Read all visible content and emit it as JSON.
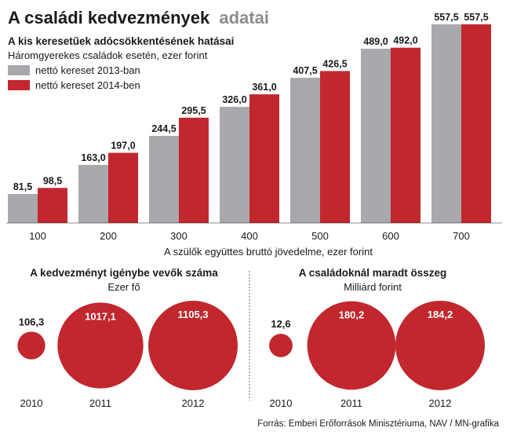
{
  "title_part1": "A családi kedvezmények",
  "title_part2": "adatai",
  "colors": {
    "gray_2013": "#a7a9ac",
    "red_2014": "#c1272d",
    "bubble_red": "#c1272d",
    "title_gray": "#8c8c8c",
    "text": "#1a1a1a"
  },
  "chart_data": [
    {
      "type": "bar",
      "title": "A kis keresetűek adócsökkentésének hatásai",
      "subtitle": "Háromgyerekes családok esetén, ezer forint",
      "categories": [
        "100",
        "200",
        "300",
        "400",
        "500",
        "600",
        "700"
      ],
      "xlabel": "A szülők együttes bruttó jövedelme, ezer forint",
      "ylabel": "",
      "ylim": [
        0,
        557.5
      ],
      "legend_position": "top-left",
      "grid": false,
      "series": [
        {
          "name": "nettó kereset 2013-ban",
          "color": "#a7a9ac",
          "values": [
            81.5,
            163.0,
            244.5,
            326.0,
            407.5,
            489.0,
            557.5
          ],
          "labels": [
            "81,5",
            "163,0",
            "244,5",
            "326,0",
            "407,5",
            "489,0",
            "557,5"
          ]
        },
        {
          "name": "nettó kereset 2014-ben",
          "color": "#c1272d",
          "values": [
            98.5,
            197.0,
            295.5,
            361.0,
            426.5,
            492.0,
            557.5
          ],
          "labels": [
            "98,5",
            "197,0",
            "295,5",
            "361,0",
            "426,5",
            "492,0",
            "557,5"
          ]
        }
      ]
    },
    {
      "type": "bubble",
      "title": "A kedvezményt igénybe vevők száma",
      "subtitle": "Ezer fő",
      "categories": [
        "2010",
        "2011",
        "2012"
      ],
      "values": [
        106.3,
        1017.1,
        1105.3
      ],
      "labels": [
        "106,3",
        "1017,1",
        "1105,3"
      ]
    },
    {
      "type": "bubble",
      "title": "A családoknál maradt összeg",
      "subtitle": "Milliárd forint",
      "categories": [
        "2010",
        "2011",
        "2012"
      ],
      "values": [
        12.6,
        180.2,
        184.2
      ],
      "labels": [
        "12,6",
        "180,2",
        "184,2"
      ]
    }
  ],
  "source": "Forrás: Emberi Erőforrások Minisztériuma, NAV / MN-grafika"
}
